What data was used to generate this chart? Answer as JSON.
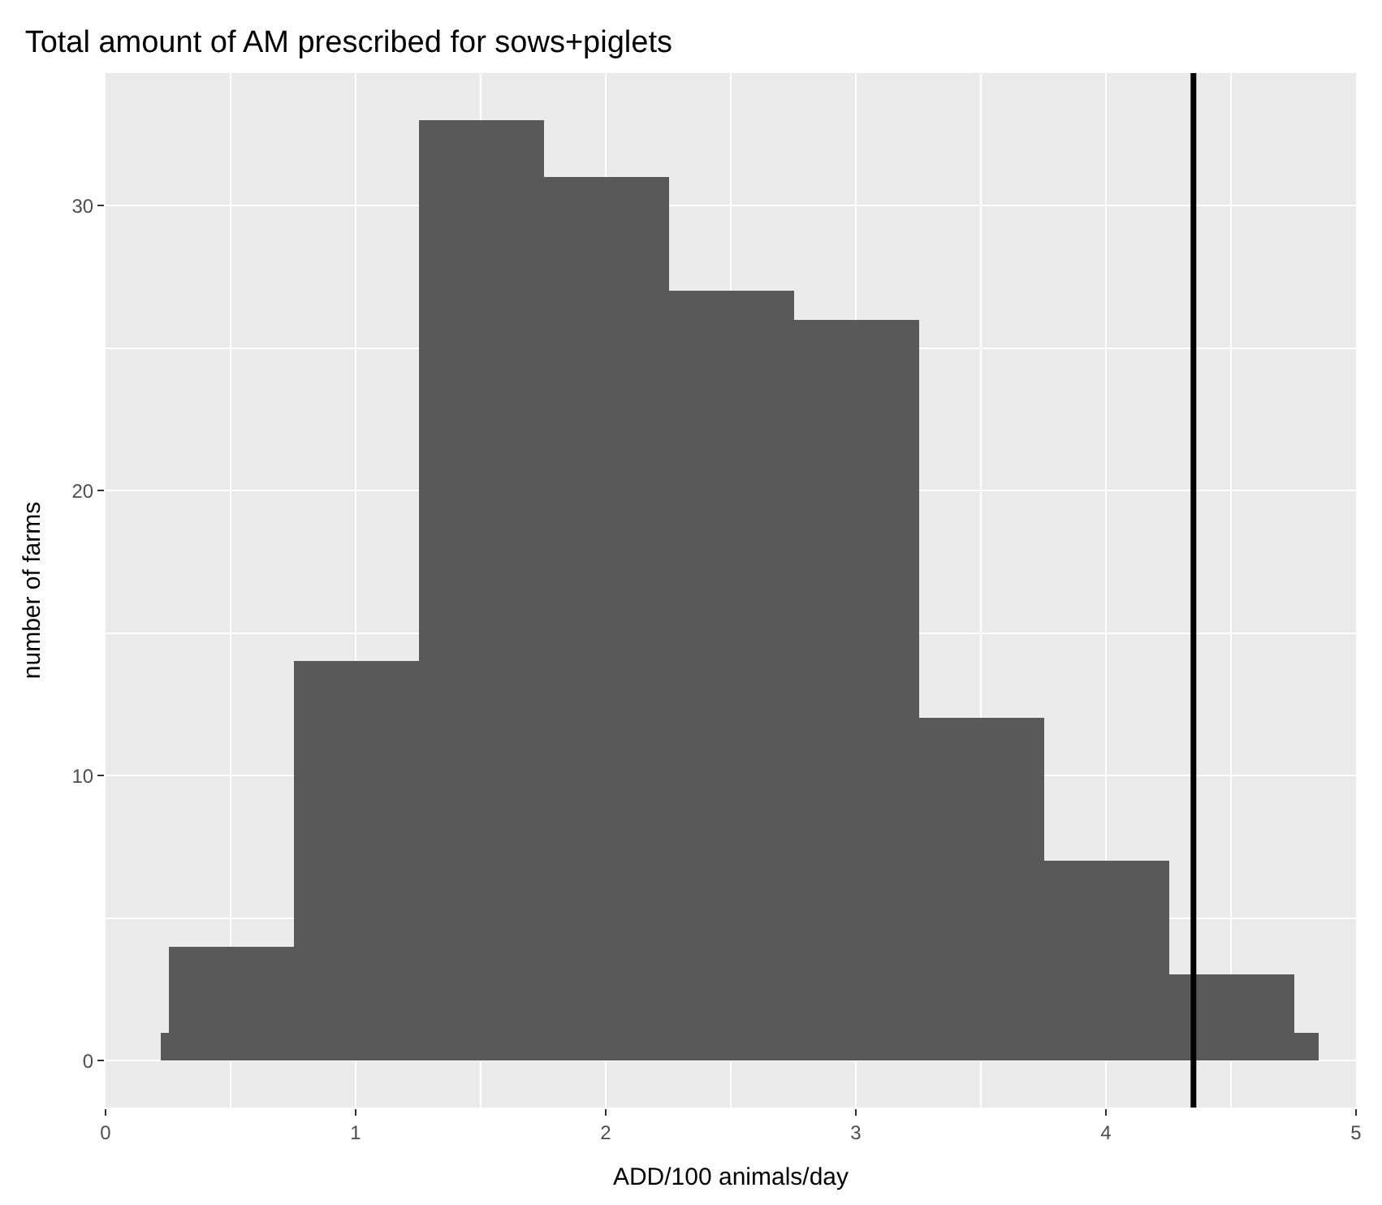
{
  "chart_data": {
    "type": "histogram",
    "title": "Total amount of AM prescribed for sows+piglets",
    "xlabel": "ADD/100 animals/day",
    "ylabel": "number of farms",
    "bins": [
      0.22,
      0.25,
      0.75,
      1.25,
      1.75,
      2.25,
      2.75,
      3.25,
      3.75,
      4.25,
      4.75,
      4.85
    ],
    "values": [
      1,
      4,
      14,
      33,
      31,
      27,
      26,
      12,
      7,
      3,
      1
    ],
    "color": "#595959",
    "xlim": [
      0,
      5
    ],
    "xticks": [
      0,
      1,
      2,
      3,
      4,
      5
    ],
    "ylim": [
      -1.65,
      34.65
    ],
    "yticks": [
      0,
      10,
      20,
      30
    ],
    "grid": true,
    "ref_lines": [
      {
        "axis": "x",
        "value": 4.35,
        "color": "#000000"
      }
    ]
  }
}
